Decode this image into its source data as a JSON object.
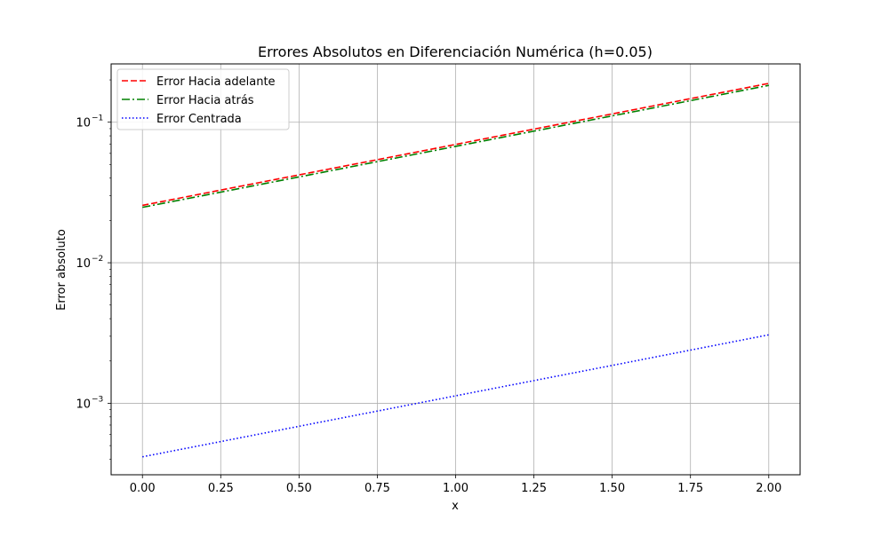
{
  "chart_data": {
    "type": "line",
    "title": "Errores Absolutos en Diferenciación Numérica (h=0.05)",
    "xlabel": "x",
    "ylabel": "Error absoluto",
    "xlim": [
      -0.1,
      2.1
    ],
    "ylim": [
      0.00031,
      0.26
    ],
    "yscale": "log",
    "grid": true,
    "legend_position": "top-left",
    "xticks": [
      "0.00",
      "0.25",
      "0.50",
      "0.75",
      "1.00",
      "1.25",
      "1.50",
      "1.75",
      "2.00"
    ],
    "yticks": [
      {
        "value": 0.1,
        "base": "10",
        "exp": "−1"
      },
      {
        "value": 0.01,
        "base": "10",
        "exp": "−2"
      },
      {
        "value": 0.001,
        "base": "10",
        "exp": "−3"
      }
    ],
    "series": [
      {
        "name": "Error Hacia adelante",
        "color": "#ff0000",
        "style": "dashed",
        "x": [
          0.0,
          0.25,
          0.5,
          0.75,
          1.0,
          1.25,
          1.5,
          1.75,
          2.0
        ],
        "y": [
          0.0256,
          0.0329,
          0.0422,
          0.0541,
          0.0695,
          0.0893,
          0.1146,
          0.1472,
          0.1889
        ]
      },
      {
        "name": "Error Hacia atrás",
        "color": "#008000",
        "style": "dashdot",
        "x": [
          0.0,
          0.25,
          0.5,
          0.75,
          1.0,
          1.25,
          1.5,
          1.75,
          2.0
        ],
        "y": [
          0.0248,
          0.0318,
          0.0408,
          0.0524,
          0.0673,
          0.0864,
          0.1109,
          0.1424,
          0.1829
        ]
      },
      {
        "name": "Error Centrada",
        "color": "#0000ff",
        "style": "dotted",
        "x": [
          0.0,
          0.25,
          0.5,
          0.75,
          1.0,
          1.25,
          1.5,
          1.75,
          2.0
        ],
        "y": [
          0.000416,
          0.000534,
          0.000686,
          0.00088,
          0.00113,
          0.00145,
          0.00186,
          0.00239,
          0.00307
        ]
      }
    ]
  }
}
